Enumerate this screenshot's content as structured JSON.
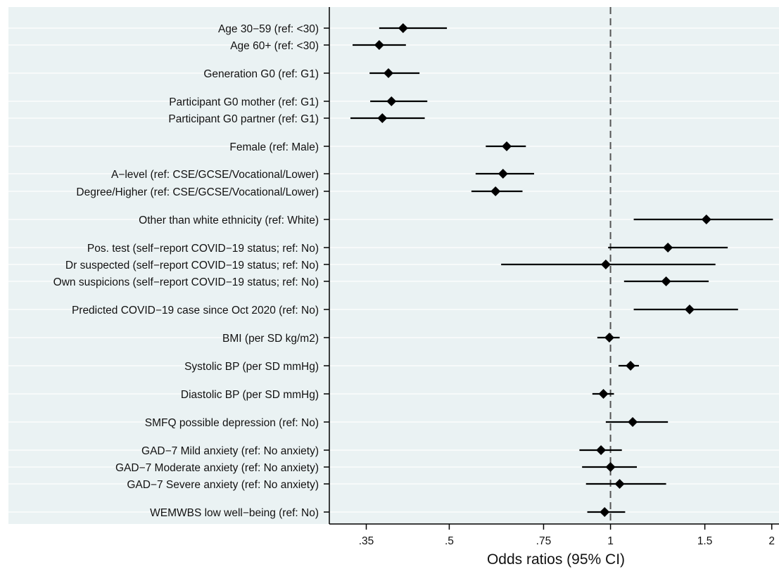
{
  "chart_data": {
    "type": "forest",
    "title": "",
    "xlabel": "Odds ratios (95% CI)",
    "ylabel": "",
    "x_scale": "log",
    "xlim": [
      0.305,
      2.02
    ],
    "reference_line": 1,
    "x_ticks": [
      {
        "value": 0.35,
        "label": ".35"
      },
      {
        "value": 0.5,
        "label": ".5"
      },
      {
        "value": 0.75,
        "label": ".75"
      },
      {
        "value": 1,
        "label": "1"
      },
      {
        "value": 1.5,
        "label": "1.5"
      },
      {
        "value": 2,
        "label": "2"
      }
    ],
    "grid": true,
    "marker": "diamond",
    "colors": {
      "background": "#eaf2f3",
      "grid": "#ffffff",
      "marker": "#000000",
      "reference_line": "#555555"
    },
    "rows": [
      {
        "label": "Age 30−59 (ref: <30)",
        "or": 0.41,
        "lo": 0.37,
        "hi": 0.495
      },
      {
        "label": "Age 60+ (ref: <30)",
        "or": 0.37,
        "lo": 0.33,
        "hi": 0.415
      },
      {
        "label": "Generation G0 (ref: G1)",
        "or": 0.385,
        "lo": 0.355,
        "hi": 0.44
      },
      {
        "label": "Participant G0 mother (ref: G1)",
        "or": 0.39,
        "lo": 0.356,
        "hi": 0.455
      },
      {
        "label": "Participant G0 partner (ref: G1)",
        "or": 0.375,
        "lo": 0.327,
        "hi": 0.45
      },
      {
        "label": "Female (ref: Male)",
        "or": 0.64,
        "lo": 0.585,
        "hi": 0.695
      },
      {
        "label": "A−level (ref: CSE/GCSE/Vocational/Lower)",
        "or": 0.63,
        "lo": 0.56,
        "hi": 0.72
      },
      {
        "label": "Degree/Higher (ref: CSE/GCSE/Vocational/Lower)",
        "or": 0.61,
        "lo": 0.55,
        "hi": 0.685
      },
      {
        "label": "Other than white ethnicity (ref: White)",
        "or": 1.51,
        "lo": 1.105,
        "hi": 2.01
      },
      {
        "label": "Pos. test (self−report COVID−19 status; ref: No)",
        "or": 1.28,
        "lo": 0.99,
        "hi": 1.655
      },
      {
        "label": "Dr suspected (self−report COVID−19 status; ref: No)",
        "or": 0.98,
        "lo": 0.625,
        "hi": 1.57
      },
      {
        "label": "Own suspicions (self−report COVID−19 status; ref: No)",
        "or": 1.27,
        "lo": 1.06,
        "hi": 1.525
      },
      {
        "label": "Predicted COVID−19 case since Oct 2020 (ref: No)",
        "or": 1.405,
        "lo": 1.105,
        "hi": 1.73
      },
      {
        "label": "BMI (per SD kg/m2)",
        "or": 0.995,
        "lo": 0.945,
        "hi": 1.04
      },
      {
        "label": "Systolic BP (per SD mmHg)",
        "or": 1.09,
        "lo": 1.035,
        "hi": 1.13
      },
      {
        "label": "Diastolic BP (per SD mmHg)",
        "or": 0.97,
        "lo": 0.925,
        "hi": 1.015
      },
      {
        "label": "SMFQ possible depression (ref: No)",
        "or": 1.1,
        "lo": 0.98,
        "hi": 1.28
      },
      {
        "label": "GAD−7 Mild anxiety (ref: No anxiety)",
        "or": 0.96,
        "lo": 0.875,
        "hi": 1.05
      },
      {
        "label": "GAD−7 Moderate anxiety (ref: No anxiety)",
        "or": 1.0,
        "lo": 0.885,
        "hi": 1.12
      },
      {
        "label": "GAD−7 Severe anxiety (ref: No anxiety)",
        "or": 1.04,
        "lo": 0.9,
        "hi": 1.27
      },
      {
        "label": "WEMWBS low well−being (ref: No)",
        "or": 0.975,
        "lo": 0.905,
        "hi": 1.065
      }
    ]
  }
}
